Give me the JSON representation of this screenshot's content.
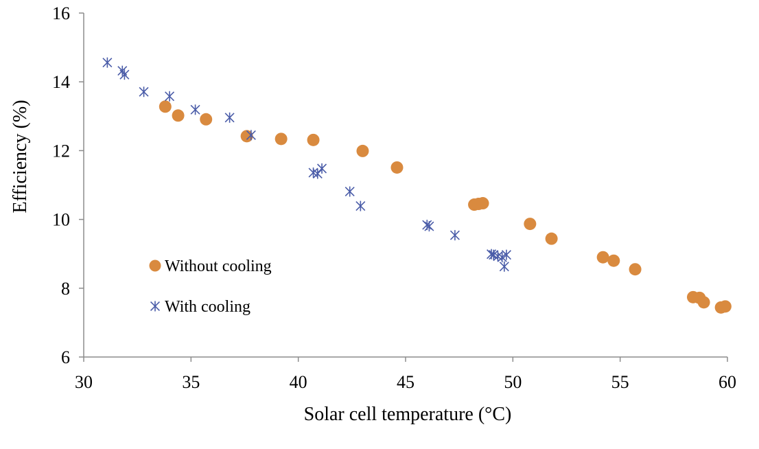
{
  "chart_data": {
    "type": "scatter",
    "title": "",
    "xlabel": "Solar cell temperature (°C)",
    "ylabel": "Efficiency (%)",
    "xlim": [
      30,
      60
    ],
    "ylim": [
      6,
      16
    ],
    "xticks": [
      30,
      35,
      40,
      45,
      50,
      55,
      60
    ],
    "yticks": [
      6,
      8,
      10,
      12,
      14,
      16
    ],
    "grid": false,
    "legend_position": "left-middle",
    "series": [
      {
        "name": "Without cooling",
        "marker": "circle",
        "color": "#D98A3F",
        "points": [
          [
            33.8,
            13.28
          ],
          [
            34.4,
            13.02
          ],
          [
            35.7,
            12.91
          ],
          [
            37.6,
            12.42
          ],
          [
            39.2,
            12.34
          ],
          [
            40.7,
            12.31
          ],
          [
            43.0,
            11.99
          ],
          [
            44.6,
            11.51
          ],
          [
            48.2,
            10.43
          ],
          [
            48.4,
            10.45
          ],
          [
            48.6,
            10.47
          ],
          [
            50.8,
            9.87
          ],
          [
            51.8,
            9.44
          ],
          [
            54.2,
            8.9
          ],
          [
            54.7,
            8.8
          ],
          [
            55.7,
            8.55
          ],
          [
            58.4,
            7.74
          ],
          [
            58.7,
            7.72
          ],
          [
            58.9,
            7.59
          ],
          [
            59.7,
            7.44
          ],
          [
            59.9,
            7.47
          ]
        ]
      },
      {
        "name": "With cooling",
        "marker": "asterisk",
        "color": "#4A5CA8",
        "points": [
          [
            31.1,
            14.56
          ],
          [
            31.8,
            14.32
          ],
          [
            31.9,
            14.21
          ],
          [
            32.8,
            13.71
          ],
          [
            34.0,
            13.58
          ],
          [
            35.2,
            13.19
          ],
          [
            36.8,
            12.96
          ],
          [
            37.8,
            12.45
          ],
          [
            40.7,
            11.36
          ],
          [
            40.9,
            11.33
          ],
          [
            41.1,
            11.48
          ],
          [
            42.4,
            10.81
          ],
          [
            42.9,
            10.39
          ],
          [
            46.0,
            9.84
          ],
          [
            46.1,
            9.8
          ],
          [
            47.3,
            9.54
          ],
          [
            49.0,
            8.99
          ],
          [
            49.1,
            8.97
          ],
          [
            49.3,
            8.93
          ],
          [
            49.5,
            8.9
          ],
          [
            49.7,
            8.97
          ],
          [
            49.6,
            8.63
          ]
        ]
      }
    ]
  }
}
